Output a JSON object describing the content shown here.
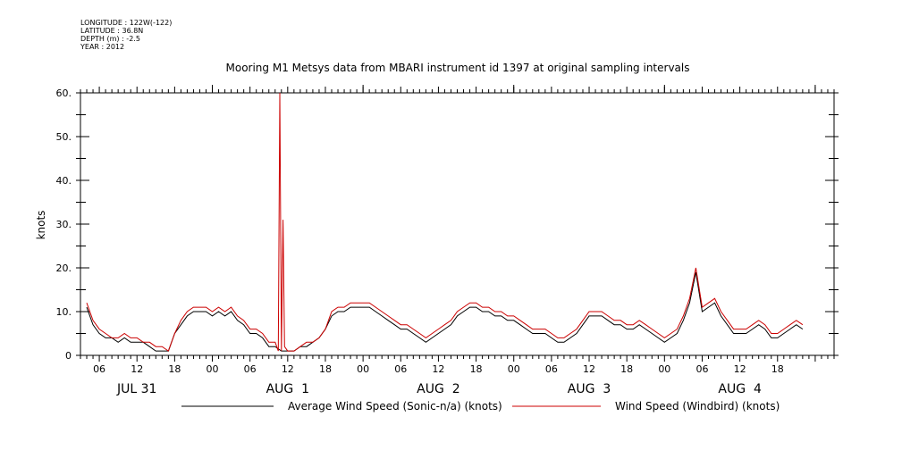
{
  "header": {
    "longitude": "LONGITUDE : 122W(-122)",
    "latitude": "LATITUDE : 36.8N",
    "depth": "DEPTH (m) : -2.5",
    "year": "YEAR : 2012"
  },
  "chart_data": {
    "type": "line",
    "title": "Mooring M1 Metsys data from MBARI instrument id 1397 at original sampling intervals",
    "ylabel": "knots",
    "xlabel": "",
    "ylim": [
      0,
      60
    ],
    "xlim": [
      "2012-07-31T03:00",
      "2012-08-05T03:00"
    ],
    "y_ticks": [
      0,
      10,
      20,
      30,
      40,
      50,
      60
    ],
    "y_tick_labels": [
      "0",
      "10.",
      "20.",
      "30.",
      "40.",
      "50.",
      "60."
    ],
    "x_hour_ticks": [
      {
        "t": "2012-07-31T06:00",
        "label": "06"
      },
      {
        "t": "2012-07-31T12:00",
        "label": "12"
      },
      {
        "t": "2012-07-31T18:00",
        "label": "18"
      },
      {
        "t": "2012-08-01T00:00",
        "label": "00"
      },
      {
        "t": "2012-08-01T06:00",
        "label": "06"
      },
      {
        "t": "2012-08-01T12:00",
        "label": "12"
      },
      {
        "t": "2012-08-01T18:00",
        "label": "18"
      },
      {
        "t": "2012-08-02T00:00",
        "label": "00"
      },
      {
        "t": "2012-08-02T06:00",
        "label": "06"
      },
      {
        "t": "2012-08-02T12:00",
        "label": "12"
      },
      {
        "t": "2012-08-02T18:00",
        "label": "18"
      },
      {
        "t": "2012-08-03T00:00",
        "label": "00"
      },
      {
        "t": "2012-08-03T06:00",
        "label": "06"
      },
      {
        "t": "2012-08-03T12:00",
        "label": "12"
      },
      {
        "t": "2012-08-03T18:00",
        "label": "18"
      },
      {
        "t": "2012-08-04T00:00",
        "label": "00"
      },
      {
        "t": "2012-08-04T06:00",
        "label": "06"
      },
      {
        "t": "2012-08-04T12:00",
        "label": "12"
      },
      {
        "t": "2012-08-04T18:00",
        "label": "18"
      }
    ],
    "x_day_labels": [
      {
        "t": "2012-07-31T12:00",
        "label": "JUL 31"
      },
      {
        "t": "2012-08-01T12:00",
        "label": "AUG  1"
      },
      {
        "t": "2012-08-02T12:00",
        "label": "AUG  2"
      },
      {
        "t": "2012-08-03T12:00",
        "label": "AUG  3"
      },
      {
        "t": "2012-08-04T12:00",
        "label": "AUG  4"
      }
    ],
    "series": [
      {
        "name": "Average Wind Speed (Sonic-n/a) (knots)",
        "color": "#000000",
        "x": [
          "2012-07-31T04:00",
          "2012-07-31T05:00",
          "2012-07-31T06:00",
          "2012-07-31T07:00",
          "2012-07-31T08:00",
          "2012-07-31T09:00",
          "2012-07-31T10:00",
          "2012-07-31T11:00",
          "2012-07-31T12:00",
          "2012-07-31T13:00",
          "2012-07-31T14:00",
          "2012-07-31T15:00",
          "2012-07-31T16:00",
          "2012-07-31T17:00",
          "2012-07-31T18:00",
          "2012-07-31T19:00",
          "2012-07-31T20:00",
          "2012-07-31T21:00",
          "2012-07-31T22:00",
          "2012-07-31T23:00",
          "2012-08-01T00:00",
          "2012-08-01T01:00",
          "2012-08-01T02:00",
          "2012-08-01T03:00",
          "2012-08-01T04:00",
          "2012-08-01T05:00",
          "2012-08-01T06:00",
          "2012-08-01T07:00",
          "2012-08-01T08:00",
          "2012-08-01T09:00",
          "2012-08-01T10:00",
          "2012-08-01T11:00",
          "2012-08-01T12:00",
          "2012-08-01T13:00",
          "2012-08-01T14:00",
          "2012-08-01T15:00",
          "2012-08-01T16:00",
          "2012-08-01T17:00",
          "2012-08-01T18:00",
          "2012-08-01T19:00",
          "2012-08-01T20:00",
          "2012-08-01T21:00",
          "2012-08-01T22:00",
          "2012-08-01T23:00",
          "2012-08-02T00:00",
          "2012-08-02T01:00",
          "2012-08-02T02:00",
          "2012-08-02T03:00",
          "2012-08-02T04:00",
          "2012-08-02T05:00",
          "2012-08-02T06:00",
          "2012-08-02T07:00",
          "2012-08-02T08:00",
          "2012-08-02T09:00",
          "2012-08-02T10:00",
          "2012-08-02T11:00",
          "2012-08-02T12:00",
          "2012-08-02T13:00",
          "2012-08-02T14:00",
          "2012-08-02T15:00",
          "2012-08-02T16:00",
          "2012-08-02T17:00",
          "2012-08-02T18:00",
          "2012-08-02T19:00",
          "2012-08-02T20:00",
          "2012-08-02T21:00",
          "2012-08-02T22:00",
          "2012-08-02T23:00",
          "2012-08-03T00:00",
          "2012-08-03T01:00",
          "2012-08-03T02:00",
          "2012-08-03T03:00",
          "2012-08-03T04:00",
          "2012-08-03T05:00",
          "2012-08-03T06:00",
          "2012-08-03T07:00",
          "2012-08-03T08:00",
          "2012-08-03T09:00",
          "2012-08-03T10:00",
          "2012-08-03T11:00",
          "2012-08-03T12:00",
          "2012-08-03T13:00",
          "2012-08-03T14:00",
          "2012-08-03T15:00",
          "2012-08-03T16:00",
          "2012-08-03T17:00",
          "2012-08-03T18:00",
          "2012-08-03T19:00",
          "2012-08-03T20:00",
          "2012-08-03T21:00",
          "2012-08-03T22:00",
          "2012-08-03T23:00",
          "2012-08-04T00:00",
          "2012-08-04T01:00",
          "2012-08-04T02:00",
          "2012-08-04T03:00",
          "2012-08-04T04:00",
          "2012-08-04T05:00",
          "2012-08-04T06:00",
          "2012-08-04T07:00",
          "2012-08-04T08:00",
          "2012-08-04T09:00",
          "2012-08-04T10:00",
          "2012-08-04T11:00",
          "2012-08-04T12:00",
          "2012-08-04T13:00",
          "2012-08-04T14:00",
          "2012-08-04T15:00",
          "2012-08-04T16:00",
          "2012-08-04T17:00",
          "2012-08-04T18:00",
          "2012-08-04T19:00",
          "2012-08-04T20:00",
          "2012-08-04T21:00",
          "2012-08-04T22:00"
        ],
        "values": [
          11,
          7,
          5,
          4,
          4,
          3,
          4,
          3,
          3,
          3,
          2,
          1,
          1,
          1,
          5,
          7,
          9,
          10,
          10,
          10,
          9,
          10,
          9,
          10,
          8,
          7,
          5,
          5,
          4,
          2,
          2,
          1,
          1,
          1,
          2,
          2,
          3,
          4,
          6,
          9,
          10,
          10,
          11,
          11,
          11,
          11,
          10,
          9,
          8,
          7,
          6,
          6,
          5,
          4,
          3,
          4,
          5,
          6,
          7,
          9,
          10,
          11,
          11,
          10,
          10,
          9,
          9,
          8,
          8,
          7,
          6,
          5,
          5,
          5,
          4,
          3,
          3,
          4,
          5,
          7,
          9,
          9,
          9,
          8,
          7,
          7,
          6,
          6,
          7,
          6,
          5,
          4,
          3,
          4,
          5,
          8,
          12,
          19,
          10,
          11,
          12,
          9,
          7,
          5,
          5,
          5,
          6,
          7,
          6,
          4,
          4,
          5,
          6,
          7,
          6
        ]
      },
      {
        "name": "Wind Speed (Windbird) (knots)",
        "color": "#cc0000",
        "x": [
          "2012-07-31T04:00",
          "2012-07-31T05:00",
          "2012-07-31T06:00",
          "2012-07-31T07:00",
          "2012-07-31T08:00",
          "2012-07-31T09:00",
          "2012-07-31T10:00",
          "2012-07-31T11:00",
          "2012-07-31T12:00",
          "2012-07-31T13:00",
          "2012-07-31T14:00",
          "2012-07-31T15:00",
          "2012-07-31T16:00",
          "2012-07-31T17:00",
          "2012-07-31T18:00",
          "2012-07-31T19:00",
          "2012-07-31T20:00",
          "2012-07-31T21:00",
          "2012-07-31T22:00",
          "2012-07-31T23:00",
          "2012-08-01T00:00",
          "2012-08-01T01:00",
          "2012-08-01T02:00",
          "2012-08-01T03:00",
          "2012-08-01T04:00",
          "2012-08-01T05:00",
          "2012-08-01T06:00",
          "2012-08-01T07:00",
          "2012-08-01T08:00",
          "2012-08-01T09:00",
          "2012-08-01T10:00",
          "2012-08-01T10:30",
          "2012-08-01T10:45",
          "2012-08-01T11:00",
          "2012-08-01T11:15",
          "2012-08-01T11:30",
          "2012-08-01T12:00",
          "2012-08-01T13:00",
          "2012-08-01T14:00",
          "2012-08-01T15:00",
          "2012-08-01T16:00",
          "2012-08-01T17:00",
          "2012-08-01T18:00",
          "2012-08-01T19:00",
          "2012-08-01T20:00",
          "2012-08-01T21:00",
          "2012-08-01T22:00",
          "2012-08-01T23:00",
          "2012-08-02T00:00",
          "2012-08-02T01:00",
          "2012-08-02T02:00",
          "2012-08-02T03:00",
          "2012-08-02T04:00",
          "2012-08-02T05:00",
          "2012-08-02T06:00",
          "2012-08-02T07:00",
          "2012-08-02T08:00",
          "2012-08-02T09:00",
          "2012-08-02T10:00",
          "2012-08-02T11:00",
          "2012-08-02T12:00",
          "2012-08-02T13:00",
          "2012-08-02T14:00",
          "2012-08-02T15:00",
          "2012-08-02T16:00",
          "2012-08-02T17:00",
          "2012-08-02T18:00",
          "2012-08-02T19:00",
          "2012-08-02T20:00",
          "2012-08-02T21:00",
          "2012-08-02T22:00",
          "2012-08-02T23:00",
          "2012-08-03T00:00",
          "2012-08-03T01:00",
          "2012-08-03T02:00",
          "2012-08-03T03:00",
          "2012-08-03T04:00",
          "2012-08-03T05:00",
          "2012-08-03T06:00",
          "2012-08-03T07:00",
          "2012-08-03T08:00",
          "2012-08-03T09:00",
          "2012-08-03T10:00",
          "2012-08-03T11:00",
          "2012-08-03T12:00",
          "2012-08-03T13:00",
          "2012-08-03T14:00",
          "2012-08-03T15:00",
          "2012-08-03T16:00",
          "2012-08-03T17:00",
          "2012-08-03T18:00",
          "2012-08-03T19:00",
          "2012-08-03T20:00",
          "2012-08-03T21:00",
          "2012-08-03T22:00",
          "2012-08-03T23:00",
          "2012-08-04T00:00",
          "2012-08-04T01:00",
          "2012-08-04T02:00",
          "2012-08-04T03:00",
          "2012-08-04T04:00",
          "2012-08-04T05:00",
          "2012-08-04T06:00",
          "2012-08-04T07:00",
          "2012-08-04T08:00",
          "2012-08-04T09:00",
          "2012-08-04T10:00",
          "2012-08-04T11:00",
          "2012-08-04T12:00",
          "2012-08-04T13:00",
          "2012-08-04T14:00",
          "2012-08-04T15:00",
          "2012-08-04T16:00",
          "2012-08-04T17:00",
          "2012-08-04T18:00",
          "2012-08-04T19:00",
          "2012-08-04T20:00",
          "2012-08-04T21:00",
          "2012-08-04T22:00"
        ],
        "values": [
          12,
          8,
          6,
          5,
          4,
          4,
          5,
          4,
          4,
          3,
          3,
          2,
          2,
          1,
          5,
          8,
          10,
          11,
          11,
          11,
          10,
          11,
          10,
          11,
          9,
          8,
          6,
          6,
          5,
          3,
          3,
          1,
          60,
          1,
          31,
          2,
          1,
          1,
          2,
          3,
          3,
          4,
          6,
          10,
          11,
          11,
          12,
          12,
          12,
          12,
          11,
          10,
          9,
          8,
          7,
          7,
          6,
          5,
          4,
          5,
          6,
          7,
          8,
          10,
          11,
          12,
          12,
          11,
          11,
          10,
          10,
          9,
          9,
          8,
          7,
          6,
          6,
          6,
          5,
          4,
          4,
          5,
          6,
          8,
          10,
          10,
          10,
          9,
          8,
          8,
          7,
          7,
          8,
          7,
          6,
          5,
          4,
          5,
          6,
          9,
          13,
          20,
          11,
          12,
          13,
          10,
          8,
          6,
          6,
          6,
          7,
          8,
          7,
          5,
          5,
          6,
          7,
          8,
          7
        ]
      }
    ]
  }
}
